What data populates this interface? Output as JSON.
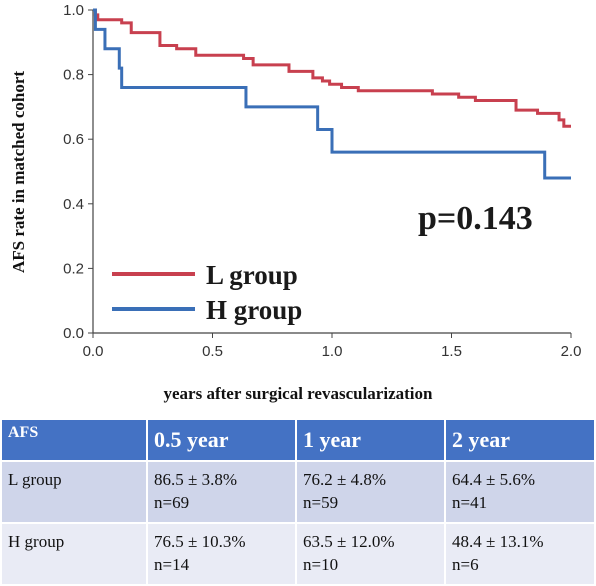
{
  "chart_data": {
    "type": "line",
    "subtype": "kaplan-meier step",
    "title": "",
    "xlabel": "years after surgical revascularization",
    "ylabel": "AFS rate in matched cohort",
    "xlim": [
      0.0,
      2.0
    ],
    "ylim": [
      0.0,
      1.0
    ],
    "xticks": [
      "0.0",
      "0.5",
      "1.0",
      "1.5",
      "2.0"
    ],
    "yticks": [
      "0.0",
      "0.2",
      "0.4",
      "0.6",
      "0.8",
      "1.0"
    ],
    "annotation": "p=0.143",
    "legend_position": "bottom-left",
    "series": [
      {
        "name": "L group",
        "color": "#c8404f",
        "points": [
          [
            0.0,
            1.0
          ],
          [
            0.01,
            0.985
          ],
          [
            0.02,
            0.97
          ],
          [
            0.12,
            0.96
          ],
          [
            0.16,
            0.93
          ],
          [
            0.28,
            0.89
          ],
          [
            0.35,
            0.88
          ],
          [
            0.43,
            0.86
          ],
          [
            0.63,
            0.85
          ],
          [
            0.67,
            0.83
          ],
          [
            0.82,
            0.81
          ],
          [
            0.92,
            0.79
          ],
          [
            0.96,
            0.78
          ],
          [
            0.99,
            0.77
          ],
          [
            1.04,
            0.76
          ],
          [
            1.11,
            0.75
          ],
          [
            1.42,
            0.74
          ],
          [
            1.53,
            0.73
          ],
          [
            1.6,
            0.72
          ],
          [
            1.77,
            0.69
          ],
          [
            1.86,
            0.68
          ],
          [
            1.95,
            0.66
          ],
          [
            1.97,
            0.64
          ],
          [
            2.0,
            0.64
          ]
        ]
      },
      {
        "name": "H group",
        "color": "#3a6fb7",
        "points": [
          [
            0.0,
            1.0
          ],
          [
            0.01,
            0.94
          ],
          [
            0.05,
            0.88
          ],
          [
            0.11,
            0.82
          ],
          [
            0.12,
            0.76
          ],
          [
            0.64,
            0.7
          ],
          [
            0.94,
            0.63
          ],
          [
            1.0,
            0.56
          ],
          [
            1.89,
            0.48
          ],
          [
            2.0,
            0.48
          ]
        ]
      }
    ]
  },
  "table": {
    "headers": [
      "AFS",
      "0.5 year",
      "1 year",
      "2 year"
    ],
    "rows": [
      {
        "label": "L group",
        "cells": [
          {
            "value": "86.5 ± 3.8%",
            "n": "n=69"
          },
          {
            "value": "76.2 ± 4.8%",
            "n": "n=59"
          },
          {
            "value": "64.4 ± 5.6%",
            "n": "n=41"
          }
        ]
      },
      {
        "label": "H group",
        "cells": [
          {
            "value": "76.5 ± 10.3%",
            "n": "n=14"
          },
          {
            "value": "63.5 ± 12.0%",
            "n": "n=10"
          },
          {
            "value": "48.4 ± 13.1%",
            "n": "n=6"
          }
        ]
      }
    ]
  }
}
